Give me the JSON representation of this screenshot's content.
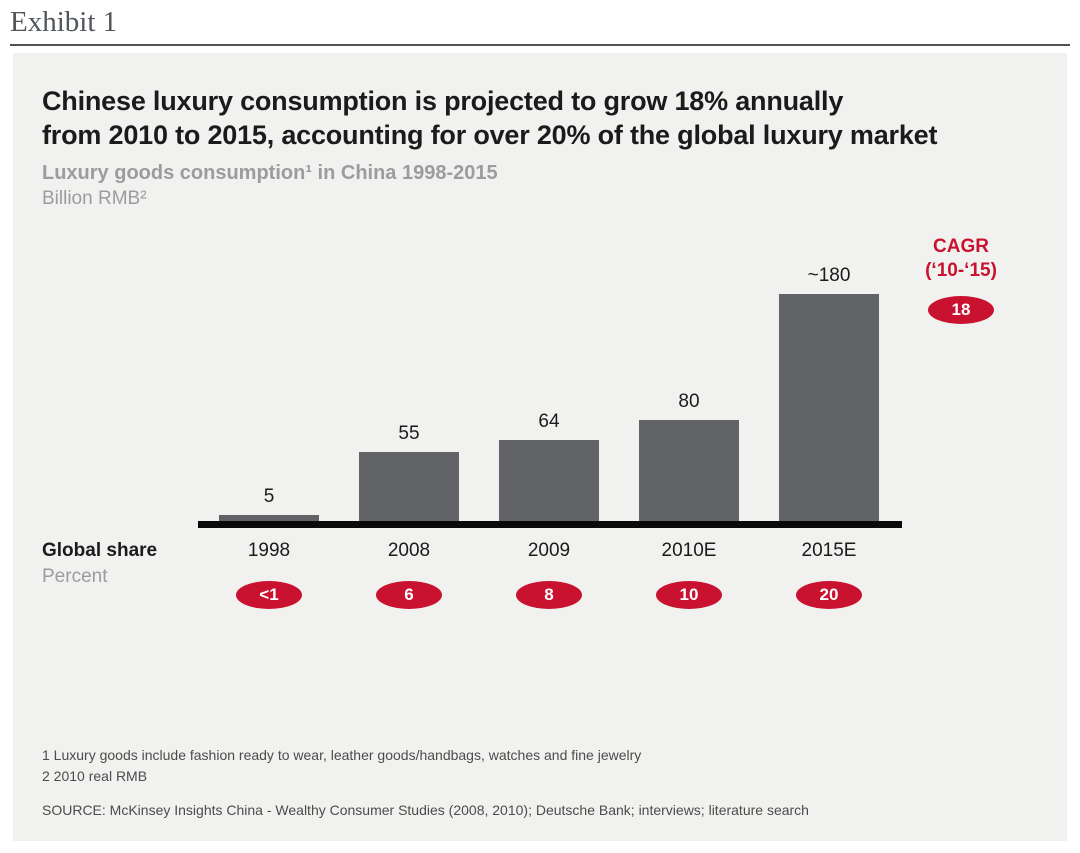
{
  "exhibit": {
    "label": "Exhibit 1"
  },
  "panel": {
    "title_line1": "Chinese luxury consumption is projected to grow 18% annually",
    "title_line2": "from 2010 to 2015, accounting for over 20% of the global luxury market",
    "subtitle": "Luxury goods consumption¹ in China 1998-2015",
    "unit": "Billion RMB²"
  },
  "chart_data": {
    "type": "bar",
    "title": "Luxury goods consumption in China 1998-2015",
    "ylabel": "Billion RMB",
    "xlabel": "",
    "categories": [
      "1998",
      "2008",
      "2009",
      "2010E",
      "2015E"
    ],
    "values": [
      5,
      55,
      64,
      80,
      180
    ],
    "value_labels": [
      "5",
      "55",
      "64",
      "80",
      "~180"
    ],
    "global_share_percent": [
      "<1",
      "6",
      "8",
      "10",
      "20"
    ],
    "cagr": {
      "label_line1": "CAGR",
      "label_line2": "(‘10-‘15)",
      "value": "18"
    },
    "ylim": [
      0,
      190
    ],
    "grid": false,
    "legend": "none",
    "bar_color": "#616366",
    "accent_red": "#c9122f",
    "panel_background": "#f1f1ef"
  },
  "left_axis": {
    "row_label": "Global share",
    "row_sublabel": "Percent"
  },
  "footnotes": {
    "line1": "1 Luxury goods include fashion ready to wear, leather goods/handbags, watches and fine jewelry",
    "line2": "2 2010 real RMB",
    "source": "SOURCE: McKinsey Insights China - Wealthy Consumer Studies (2008, 2010);  Deutsche Bank; interviews; literature search"
  }
}
